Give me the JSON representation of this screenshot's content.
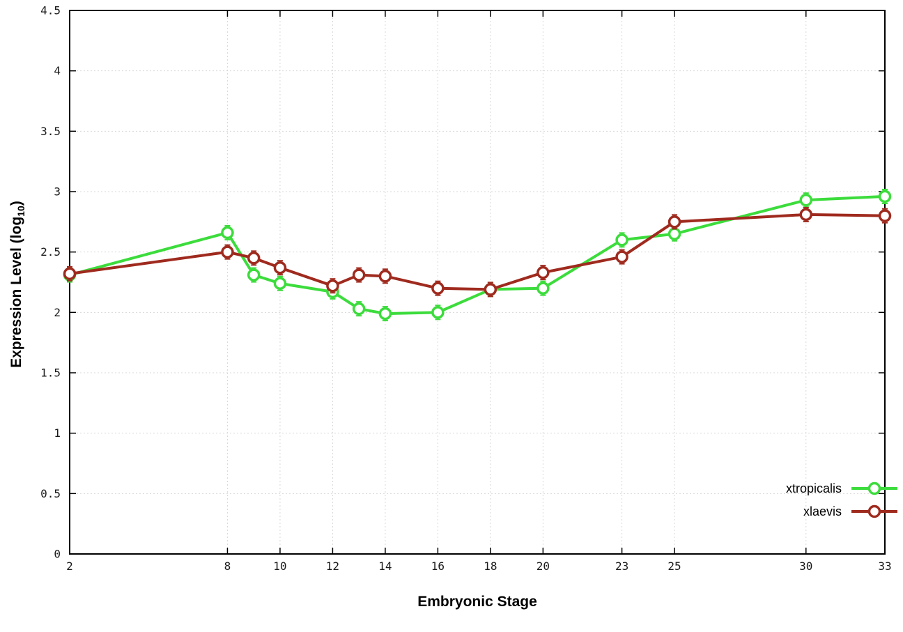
{
  "labels": {
    "ylabel_prefix": "Expression Level (log",
    "ylabel_sub": "10",
    "ylabel_suffix": ")",
    "xlabel": "Embryonic Stage"
  },
  "colors": {
    "background": "#ffffff",
    "border": "#000000",
    "grid": "#d8d8d8",
    "tick_text": "#1a1a1a",
    "series_green": "#3cdc3c",
    "series_red": "#9f2a1e"
  },
  "chart_data": {
    "type": "line",
    "title": "",
    "xlabel": "Embryonic Stage",
    "ylabel": "Expression Level (log10)",
    "x": [
      2,
      8,
      9,
      10,
      12,
      13,
      14,
      16,
      18,
      20,
      23,
      25,
      30,
      33
    ],
    "series": [
      {
        "name": "xtropicalis",
        "color": "#3cdc3c",
        "values": [
          2.31,
          2.66,
          2.31,
          2.24,
          2.17,
          2.03,
          1.99,
          2.0,
          2.19,
          2.2,
          2.6,
          2.65,
          2.93,
          2.96
        ]
      },
      {
        "name": "xlaevis",
        "color": "#9f2a1e",
        "values": [
          2.32,
          2.5,
          2.45,
          2.37,
          2.22,
          2.31,
          2.3,
          2.2,
          2.19,
          2.33,
          2.46,
          2.75,
          2.81,
          2.8
        ]
      }
    ],
    "xticks": [
      2,
      8,
      10,
      12,
      14,
      16,
      18,
      20,
      23,
      25,
      30,
      33
    ],
    "yticks": [
      0,
      0.5,
      1,
      1.5,
      2,
      2.5,
      3,
      3.5,
      4,
      4.5
    ],
    "xlim": [
      2,
      33
    ],
    "ylim": [
      0,
      4.5
    ],
    "grid": true,
    "marker": "open-circle",
    "legend_position": "bottom-right"
  }
}
